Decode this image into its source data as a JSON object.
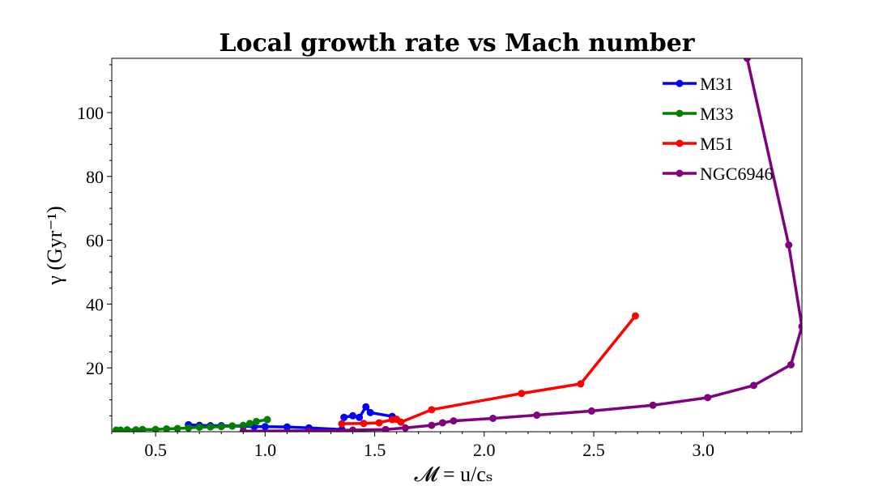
{
  "chart_data": {
    "type": "line",
    "title": "Local growth rate vs Mach number",
    "xlabel": "𝓜 = u/cₛ",
    "ylabel": "γ (Gyr⁻¹)",
    "xlim": [
      0.3,
      3.45
    ],
    "ylim": [
      0,
      117
    ],
    "xticks": [
      0.5,
      1.0,
      1.5,
      2.0,
      2.5,
      3.0
    ],
    "xtick_labels": [
      "0.5",
      "1.0",
      "1.5",
      "2.0",
      "2.5",
      "3.0"
    ],
    "yticks": [
      20,
      40,
      60,
      80,
      100
    ],
    "ytick_labels": [
      "20",
      "40",
      "60",
      "80",
      "100"
    ],
    "legend_position": "upper right",
    "grid": false,
    "series": [
      {
        "name": "M31",
        "color": "#0000ff",
        "x": [
          0.65,
          0.7,
          0.75,
          0.8,
          0.85,
          0.9,
          0.95,
          1.0,
          1.1,
          1.2,
          1.35,
          1.36,
          1.4,
          1.43,
          1.46,
          1.48,
          1.58
        ],
        "y": [
          2.2,
          2.0,
          1.9,
          1.9,
          1.8,
          1.7,
          1.6,
          1.6,
          1.5,
          1.2,
          0.7,
          4.5,
          5.0,
          4.5,
          7.8,
          6.0,
          4.8
        ]
      },
      {
        "name": "M33",
        "color": "#008000",
        "x": [
          0.32,
          0.34,
          0.37,
          0.41,
          0.44,
          0.5,
          0.55,
          0.6,
          0.65,
          0.7,
          0.75,
          0.8,
          0.85,
          0.9,
          0.93,
          0.96,
          1.01
        ],
        "y": [
          0.5,
          0.5,
          0.6,
          0.6,
          0.7,
          0.7,
          0.9,
          1.0,
          1.2,
          1.4,
          1.5,
          1.6,
          1.8,
          2.0,
          2.6,
          3.2,
          3.8
        ]
      },
      {
        "name": "M51",
        "color": "#ff0000",
        "x": [
          1.35,
          1.45,
          1.52,
          1.58,
          1.6,
          1.62,
          1.76,
          2.17,
          2.44,
          2.69
        ],
        "y": [
          2.5,
          2.6,
          2.8,
          3.8,
          3.9,
          3.0,
          6.9,
          12.0,
          15.0,
          36.3
        ]
      },
      {
        "name": "NGC6946",
        "color": "#800080",
        "x": [
          0.9,
          1.2,
          1.4,
          1.55,
          1.64,
          1.76,
          1.81,
          1.86,
          2.04,
          2.24,
          2.49,
          2.77,
          3.02,
          3.23,
          3.4,
          3.45,
          3.39,
          3.2
        ],
        "y": [
          0.2,
          0.3,
          0.5,
          0.7,
          1.2,
          2.0,
          2.8,
          3.4,
          4.2,
          5.2,
          6.5,
          8.3,
          10.7,
          14.5,
          21.0,
          33.0,
          58.5,
          117.0
        ]
      }
    ]
  }
}
